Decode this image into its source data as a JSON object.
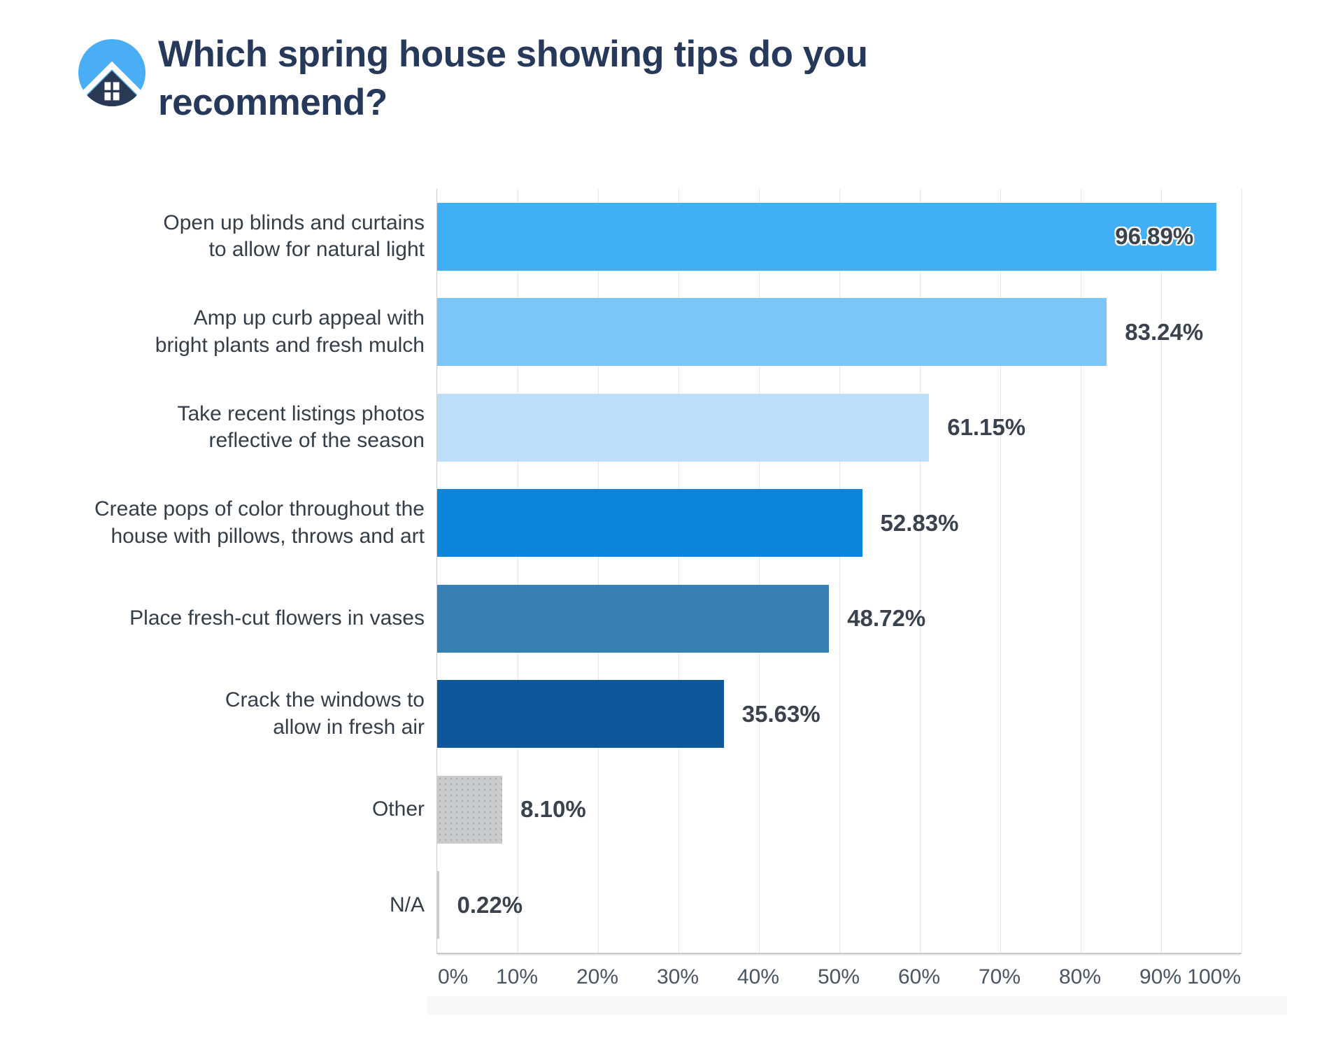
{
  "header": {
    "title": "Which spring house showing tips do you recommend?",
    "logo": {
      "icon": "house-logo-icon",
      "circle_color": "#4aaef7",
      "house_color": "#2a3a55",
      "accent_color": "#ffffff"
    }
  },
  "chart_data": {
    "type": "bar",
    "orientation": "horizontal",
    "title": "Which spring house showing tips do you recommend?",
    "categories": [
      "Open up blinds and curtains\nto allow for natural light",
      "Amp up curb appeal with\nbright plants and fresh mulch",
      "Take recent listings photos\nreflective of the season",
      "Create pops of color throughout the\nhouse with pillows, throws and art",
      "Place fresh-cut flowers in vases",
      "Crack the windows to\nallow in fresh air",
      "Other",
      "N/A"
    ],
    "values": [
      96.89,
      83.24,
      61.15,
      52.83,
      48.72,
      35.63,
      8.1,
      0.22
    ],
    "value_labels": [
      "96.89%",
      "83.24%",
      "61.15%",
      "52.83%",
      "48.72%",
      "35.63%",
      "8.10%",
      "0.22%"
    ],
    "bar_colors": [
      "#41aff5",
      "#7bc6f8",
      "#bcdefa",
      "#0b84d9",
      "#3780b3",
      "#0d589b",
      "#c9cbcd",
      "#c9cbcd"
    ],
    "bar_textured": [
      false,
      false,
      false,
      false,
      false,
      false,
      true,
      false
    ],
    "value_label_placement": [
      "inside",
      "outside",
      "outside",
      "outside",
      "outside",
      "outside",
      "outside",
      "outside"
    ],
    "xlabel": "",
    "ylabel": "",
    "xlim": [
      0,
      100
    ],
    "x_ticks": [
      "0%",
      "10%",
      "20%",
      "30%",
      "40%",
      "50%",
      "60%",
      "70%",
      "80%",
      "90%",
      "100%"
    ],
    "grid": "vertical",
    "legend": "none",
    "gridline_color": "#e7e7e7",
    "category_label_color": "#333e48",
    "value_label_color": "#3a424e",
    "tick_label_color": "#4a5563",
    "title_color": "#27395b"
  }
}
